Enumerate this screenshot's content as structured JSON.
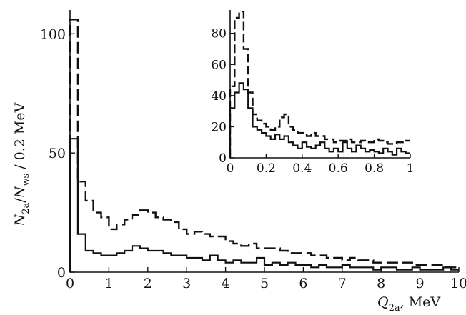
{
  "chart_data": [
    {
      "type": "line",
      "title": "",
      "xlabel": {
        "symbol": "Q",
        "sub": "2a",
        "suffix": ", MeV"
      },
      "ylabel": {
        "n_symbol": "N",
        "n_sub": "2a",
        "sep": "/",
        "d_symbol": "N",
        "d_sub": "ws",
        "suffix": " / 0.2 MeV"
      },
      "xlim": [
        0,
        10
      ],
      "ylim": [
        0,
        110
      ],
      "x_ticks": [
        0,
        1,
        2,
        3,
        4,
        5,
        6,
        7,
        8,
        9,
        10
      ],
      "x_tick_labels": [
        "0",
        "1",
        "2",
        "3",
        "4",
        "5",
        "6",
        "7",
        "8",
        "9",
        "10"
      ],
      "y_ticks": [
        0,
        50,
        100
      ],
      "y_tick_labels": [
        "0",
        "50",
        "100"
      ],
      "grid": false,
      "bin_width": 0.2,
      "series": [
        {
          "style": "dashed",
          "values": [
            106,
            38,
            30,
            25,
            23,
            18,
            20,
            22,
            24,
            26,
            25,
            23,
            22,
            21,
            18,
            16,
            17,
            16,
            15,
            15,
            13,
            12,
            11,
            12,
            10,
            10,
            10,
            9,
            8,
            8,
            8,
            7,
            7,
            6,
            6,
            5,
            6,
            5,
            5,
            4,
            4,
            4,
            4,
            4,
            3,
            3,
            3,
            3,
            2,
            2
          ]
        },
        {
          "style": "solid",
          "values": [
            56,
            16,
            9,
            8,
            7,
            7,
            8,
            9,
            11,
            10,
            9,
            9,
            8,
            7,
            7,
            6,
            6,
            5,
            7,
            5,
            4,
            5,
            4,
            4,
            6,
            3,
            4,
            3,
            4,
            3,
            3,
            2,
            3,
            2,
            2,
            3,
            2,
            2,
            2,
            1,
            2,
            2,
            1,
            1,
            2,
            1,
            1,
            1,
            2,
            1
          ]
        }
      ]
    },
    {
      "type": "line",
      "title": "",
      "xlabel": "",
      "ylabel": "",
      "xlim": [
        0,
        1
      ],
      "ylim": [
        0,
        95
      ],
      "x_ticks": [
        0,
        0.2,
        0.4,
        0.6,
        0.8,
        1
      ],
      "x_tick_labels": [
        "0",
        "0.2",
        "0.4",
        "0.6",
        "0.8",
        "1"
      ],
      "y_ticks": [
        0,
        20,
        40,
        60,
        80
      ],
      "y_tick_labels": [
        "0",
        "20",
        "40",
        "60",
        "80"
      ],
      "grid": false,
      "bin_width": 0.025,
      "series": [
        {
          "style": "dashed",
          "values": [
            46,
            90,
            94,
            70,
            42,
            28,
            24,
            22,
            20,
            18,
            20,
            26,
            28,
            20,
            18,
            16,
            16,
            14,
            16,
            14,
            14,
            12,
            12,
            10,
            11,
            11,
            12,
            10,
            10,
            11,
            10,
            10,
            12,
            11,
            10,
            9,
            9,
            10,
            10,
            11
          ]
        },
        {
          "style": "solid",
          "values": [
            32,
            42,
            48,
            44,
            32,
            20,
            18,
            16,
            14,
            12,
            15,
            12,
            14,
            10,
            8,
            6,
            10,
            7,
            6,
            8,
            10,
            6,
            4,
            6,
            4,
            10,
            6,
            4,
            8,
            6,
            4,
            5,
            4,
            3,
            6,
            4,
            2,
            6,
            4,
            3
          ]
        }
      ]
    }
  ]
}
